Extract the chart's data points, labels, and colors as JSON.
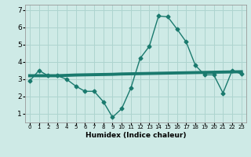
{
  "title": "",
  "xlabel": "Humidex (Indice chaleur)",
  "ylabel": "",
  "background_color": "#ceeae6",
  "grid_color": "#aed4cf",
  "line_color": "#1a7a6e",
  "x": [
    0,
    1,
    2,
    3,
    4,
    5,
    6,
    7,
    8,
    9,
    10,
    11,
    12,
    13,
    14,
    15,
    16,
    17,
    18,
    19,
    20,
    21,
    22,
    23
  ],
  "y_main": [
    2.9,
    3.5,
    3.2,
    3.2,
    3.0,
    2.6,
    2.3,
    2.3,
    1.7,
    0.8,
    1.3,
    2.5,
    4.2,
    4.9,
    6.65,
    6.6,
    5.9,
    5.15,
    3.8,
    3.25,
    3.25,
    2.2,
    3.5,
    3.3
  ],
  "y_trend": [
    3.2,
    3.2,
    3.2,
    3.2,
    3.22,
    3.24,
    3.25,
    3.26,
    3.27,
    3.28,
    3.3,
    3.31,
    3.32,
    3.33,
    3.34,
    3.35,
    3.36,
    3.37,
    3.38,
    3.39,
    3.4,
    3.41,
    3.42,
    3.43
  ],
  "ylim": [
    0.5,
    7.3
  ],
  "yticks": [
    1,
    2,
    3,
    4,
    5,
    6,
    7
  ],
  "xlim": [
    -0.5,
    23.5
  ],
  "xtick_labels": [
    "0",
    "1",
    "2",
    "3",
    "4",
    "5",
    "6",
    "7",
    "8",
    "9",
    "10",
    "11",
    "12",
    "13",
    "14",
    "15",
    "16",
    "17",
    "18",
    "19",
    "20",
    "21",
    "22",
    "23"
  ]
}
